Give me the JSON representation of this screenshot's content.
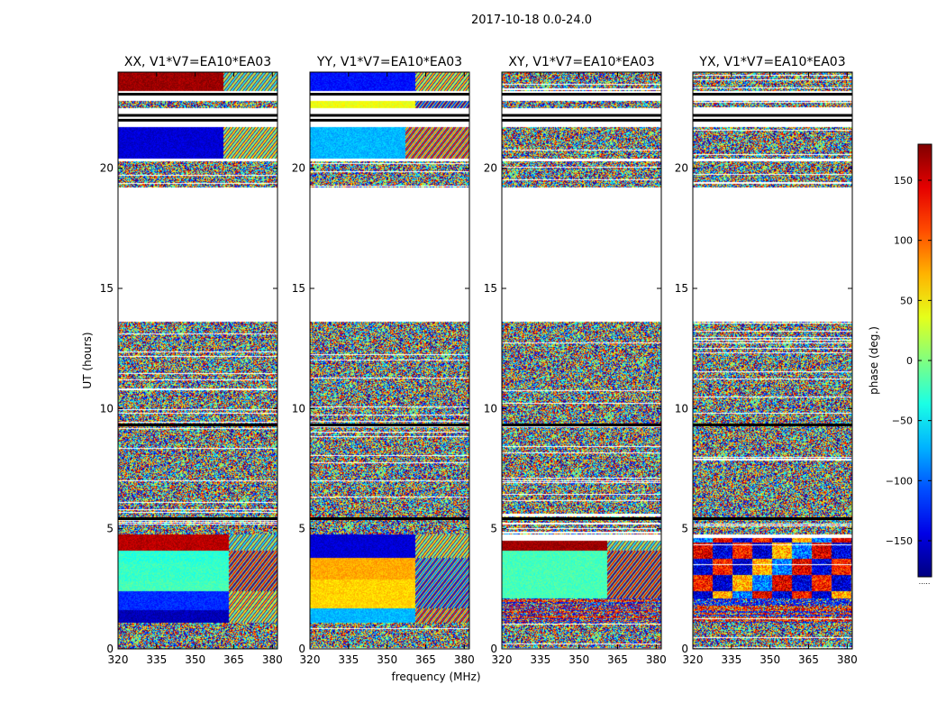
{
  "chart_data": {
    "type": "heatmap",
    "suptitle": "2017-10-18 0.0-24.0",
    "xlabel": "frequency (MHz)",
    "ylabel": "UT (hours)",
    "xlim": [
      320,
      382
    ],
    "ylim": [
      0,
      24
    ],
    "xticks": [
      320,
      335,
      350,
      365,
      380
    ],
    "yticks": [
      0,
      5,
      10,
      15,
      20
    ],
    "panels": [
      {
        "title": "XX, V1*V7=EA10*EA03",
        "coherent": [
          {
            "t0": 0.0,
            "t1": 1.1,
            "mode": "noise"
          },
          {
            "t0": 1.1,
            "t1": 1.6,
            "mode": "flat",
            "phase": -160,
            "rfi_from": 363
          },
          {
            "t0": 1.6,
            "t1": 2.4,
            "mode": "flat",
            "phase": -120,
            "rfi_from": 363
          },
          {
            "t0": 2.4,
            "t1": 2.8,
            "mode": "flat",
            "phase": -20,
            "rfi_from": 363
          },
          {
            "t0": 2.8,
            "t1": 3.6,
            "mode": "flat",
            "phase": -25,
            "rfi_from": 363
          },
          {
            "t0": 3.6,
            "t1": 4.1,
            "mode": "flat",
            "phase": -30,
            "rfi_from": 363
          },
          {
            "t0": 4.1,
            "t1": 4.75,
            "mode": "flat",
            "phase": 160,
            "rfi_from": 363
          },
          {
            "t0": 20.4,
            "t1": 21.7,
            "mode": "flat",
            "phase": -150,
            "rfi_from": 361
          },
          {
            "t0": 22.5,
            "t1": 22.8,
            "mode": "noise"
          },
          {
            "t0": 23.2,
            "t1": 24.0,
            "mode": "flat",
            "phase": 170,
            "rfi_from": 361
          }
        ]
      },
      {
        "title": "YY, V1*V7=EA10*EA03",
        "coherent": [
          {
            "t0": 0.0,
            "t1": 1.1,
            "mode": "noise"
          },
          {
            "t0": 1.1,
            "t1": 1.7,
            "mode": "flat",
            "phase": -70,
            "rfi_from": 361
          },
          {
            "t0": 1.7,
            "t1": 2.9,
            "mode": "flat",
            "phase": 60,
            "rfi_from": 361
          },
          {
            "t0": 2.9,
            "t1": 3.8,
            "mode": "flat",
            "phase": 75,
            "rfi_from": 361
          },
          {
            "t0": 3.8,
            "t1": 4.75,
            "mode": "flat",
            "phase": -150,
            "rfi_from": 361
          },
          {
            "t0": 20.4,
            "t1": 21.7,
            "mode": "flat",
            "phase": -70,
            "rfi_from": 357
          },
          {
            "t0": 22.5,
            "t1": 22.8,
            "mode": "flat",
            "phase": 40,
            "rfi_from": 361
          },
          {
            "t0": 23.2,
            "t1": 24.0,
            "mode": "flat",
            "phase": -130,
            "rfi_from": 361
          }
        ]
      },
      {
        "title": "XY, V1*V7=EA10*EA03",
        "coherent": [
          {
            "t0": 0.0,
            "t1": 1.1,
            "mode": "noise"
          },
          {
            "t0": 1.1,
            "t1": 2.1,
            "mode": "mixed"
          },
          {
            "t0": 2.1,
            "t1": 4.1,
            "mode": "flat",
            "phase": -20,
            "rfi_from": 361
          },
          {
            "t0": 4.1,
            "t1": 4.5,
            "mode": "flat",
            "phase": 170,
            "rfi_from": 361
          },
          {
            "t0": 20.4,
            "t1": 21.7,
            "mode": "noise"
          },
          {
            "t0": 22.5,
            "t1": 22.8,
            "mode": "noise"
          },
          {
            "t0": 23.2,
            "t1": 24.0,
            "mode": "noise"
          }
        ]
      },
      {
        "title": "YX, V1*V7=EA10*EA03",
        "coherent": [
          {
            "t0": 0.0,
            "t1": 1.1,
            "mode": "noise"
          },
          {
            "t0": 1.1,
            "t1": 2.1,
            "mode": "mixed"
          },
          {
            "t0": 2.1,
            "t1": 4.6,
            "mode": "patchy"
          },
          {
            "t0": 20.4,
            "t1": 21.7,
            "mode": "noise"
          },
          {
            "t0": 22.5,
            "t1": 22.8,
            "mode": "noise"
          },
          {
            "t0": 23.2,
            "t1": 24.0,
            "mode": "noise"
          }
        ]
      }
    ],
    "noise_segments": [
      [
        4.75,
        13.6
      ],
      [
        19.2,
        20.3
      ]
    ],
    "black_lines": [
      5.42,
      9.32,
      22.0,
      22.2,
      23.08
    ],
    "colorbar": {
      "label": "phase (deg.)",
      "range": [
        -180,
        180
      ],
      "ticks": [
        150,
        100,
        50,
        0,
        -50,
        -100,
        -150
      ],
      "tick_labels": [
        "150",
        "100",
        "50",
        "0",
        "−50",
        "−100",
        "−150"
      ],
      "extra_label": "....."
    }
  }
}
